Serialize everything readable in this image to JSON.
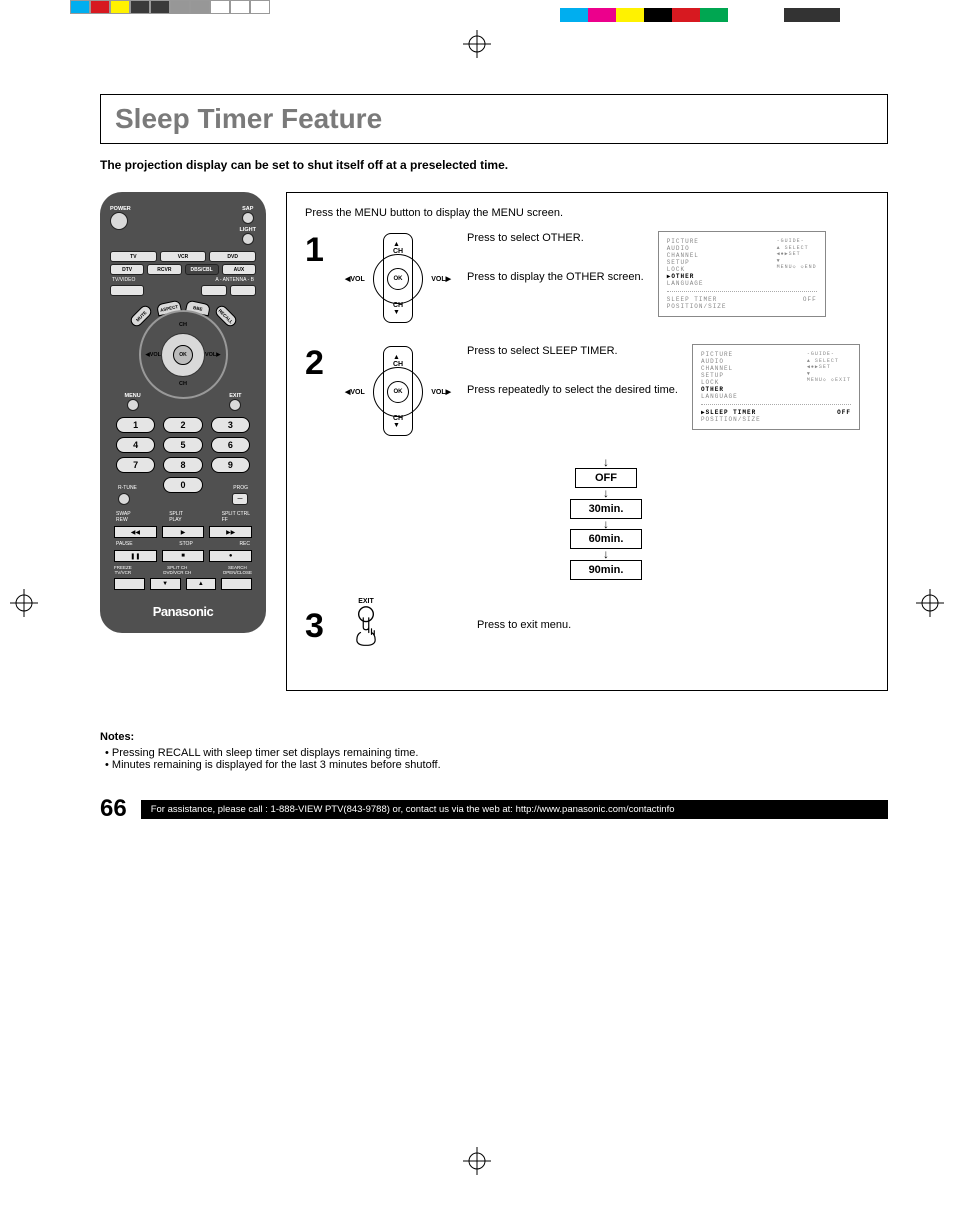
{
  "colorBar": {
    "left": [
      "#00aeef",
      "#d71920",
      "#fff200",
      "#3a3a3a",
      "#3a3a3a",
      "#979797",
      "#979797",
      "#ffffff",
      "#ffffff",
      "#ffffff"
    ],
    "right": [
      "#00aeef",
      "#ec008c",
      "#fff200",
      "#000000",
      "#d71920",
      "#00a651",
      "#ffffff",
      "#ffffff",
      "#333333",
      "#333333"
    ]
  },
  "title": "Sleep Timer Feature",
  "intro": "The projection display can be set to shut itself off at a preselected time.",
  "remote": {
    "power": "POWER",
    "sap": "SAP",
    "light": "LIGHT",
    "row1": [
      "TV",
      "VCR",
      "DVD"
    ],
    "row2": [
      "DTV",
      "RCVR",
      "DBS/CBL",
      "AUX"
    ],
    "tvvideo": "TV/VIDEO",
    "antenna": "A - ANTENNA - B",
    "aspect": "ASPECT",
    "bbe": "BBE",
    "mute": "MUTE",
    "recall": "RECALL",
    "ch": "CH",
    "vol": "VOL",
    "ok": "OK",
    "menu": "MENU",
    "exit": "EXIT",
    "nums": [
      "1",
      "2",
      "3",
      "4",
      "5",
      "6",
      "7",
      "8",
      "9",
      "0"
    ],
    "rtune": "R-TUNE",
    "prog": "PROG",
    "swap": "SWAP",
    "rew": "REW",
    "split": "SPLIT",
    "play": "PLAY",
    "splitctrl": "SPLIT CTRL",
    "ff": "FF",
    "pause": "PAUSE",
    "stop": "STOP",
    "rec": "REC",
    "freeze": "FREEZE",
    "tvvcr": "TV/VCR",
    "splitch": "SPLIT CH",
    "dvdvcr": "DVD/VCR CH",
    "search": "SEARCH",
    "openclose": "OPEN/CLOSE",
    "brand": "Panasonic"
  },
  "steps": {
    "intro": "Press the MENU button to display the MENU screen.",
    "s1": {
      "num": "1",
      "t1": "Press to select OTHER.",
      "t2": "Press to display the OTHER screen."
    },
    "s2": {
      "num": "2",
      "t1": "Press to select SLEEP TIMER.",
      "t2": "Press repeatedly to select  the desired time."
    },
    "s3": {
      "num": "3",
      "t1": "Press to exit menu.",
      "exit": "EXIT"
    },
    "timer": [
      "OFF",
      "30min.",
      "60min.",
      "90min."
    ],
    "dpad": {
      "ch": "CH",
      "vol": "VOL",
      "ok": "OK"
    }
  },
  "menu": {
    "items": [
      "PICTURE",
      "AUDIO",
      "CHANNEL",
      "SETUP",
      "LOCK",
      "OTHER",
      "LANGUAGE"
    ],
    "guide": "-GUIDE-",
    "select": "SELECT",
    "set": "SET",
    "menuLbl": "MENU",
    "end": "END",
    "exit": "EXIT",
    "sleep": "SLEEP TIMER",
    "off": "OFF",
    "pos": "POSITION/SIZE"
  },
  "notes": {
    "heading": "Notes:",
    "n1": "Pressing RECALL with sleep timer set displays remaining time.",
    "n2": "Minutes remaining is displayed for the last 3 minutes before shutoff."
  },
  "footer": {
    "page": "66",
    "text": "For assistance, please call : 1-888-VIEW PTV(843-9788) or, contact us via the web at: http://www.panasonic.com/contactinfo"
  }
}
